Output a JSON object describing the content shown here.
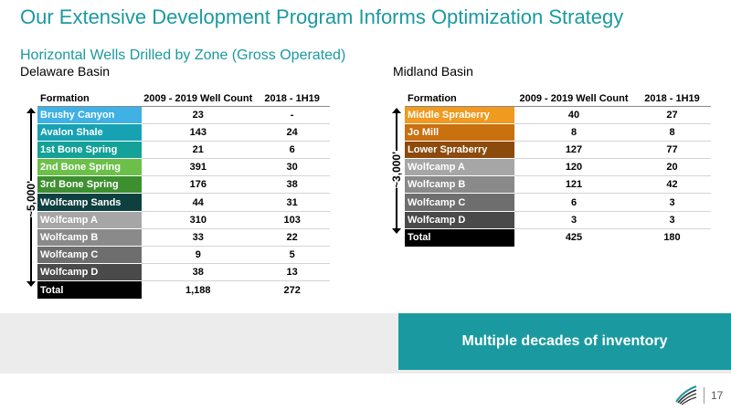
{
  "title": "Our Extensive Development Program Informs Optimization Strategy",
  "subtitle": "Horizontal Wells Drilled by Zone (Gross Operated)",
  "delaware": {
    "label": "Delaware Basin",
    "depth_label": "~5,000'",
    "headers": [
      "Formation",
      "2009 - 2019 Well Count",
      "2018 - 1H19"
    ],
    "rows": [
      {
        "formation": "Brushy Canyon",
        "count": "23",
        "recent": "-",
        "color": "#3fb1e5"
      },
      {
        "formation": "Avalon Shale",
        "count": "143",
        "recent": "24",
        "color": "#17a2b4"
      },
      {
        "formation": "1st Bone Spring",
        "count": "21",
        "recent": "6",
        "color": "#13a198"
      },
      {
        "formation": "2nd Bone Spring",
        "count": "391",
        "recent": "30",
        "color": "#6cc04a"
      },
      {
        "formation": "3rd Bone Spring",
        "count": "176",
        "recent": "38",
        "color": "#3d8f2f"
      },
      {
        "formation": "Wolfcamp Sands",
        "count": "44",
        "recent": "31",
        "color": "#0f4040"
      },
      {
        "formation": "Wolfcamp A",
        "count": "310",
        "recent": "103",
        "color": "#a6a6a6"
      },
      {
        "formation": "Wolfcamp B",
        "count": "33",
        "recent": "22",
        "color": "#8a8a8a"
      },
      {
        "formation": "Wolfcamp C",
        "count": "9",
        "recent": "5",
        "color": "#6e6e6e"
      },
      {
        "formation": "Wolfcamp D",
        "count": "38",
        "recent": "13",
        "color": "#4a4a4a"
      }
    ],
    "total": {
      "formation": "Total",
      "count": "1,188",
      "recent": "272"
    }
  },
  "midland": {
    "label": "Midland Basin",
    "depth_label": "~3,000'",
    "headers": [
      "Formation",
      "2009 - 2019 Well Count",
      "2018 - 1H19"
    ],
    "rows": [
      {
        "formation": "Middle Spraberry",
        "count": "40",
        "recent": "27",
        "color": "#f09a1f"
      },
      {
        "formation": "Jo Mill",
        "count": "8",
        "recent": "8",
        "color": "#c9700f"
      },
      {
        "formation": "Lower Spraberry",
        "count": "127",
        "recent": "77",
        "color": "#8c4a0c"
      },
      {
        "formation": "Wolfcamp A",
        "count": "120",
        "recent": "20",
        "color": "#a6a6a6"
      },
      {
        "formation": "Wolfcamp B",
        "count": "121",
        "recent": "42",
        "color": "#8a8a8a"
      },
      {
        "formation": "Wolfcamp C",
        "count": "6",
        "recent": "3",
        "color": "#6e6e6e"
      },
      {
        "formation": "Wolfcamp D",
        "count": "3",
        "recent": "3",
        "color": "#4a4a4a"
      }
    ],
    "total": {
      "formation": "Total",
      "count": "425",
      "recent": "180"
    }
  },
  "callout": "Multiple decades of inventory",
  "page_number": "17",
  "logo_icon": "company-logo-icon"
}
